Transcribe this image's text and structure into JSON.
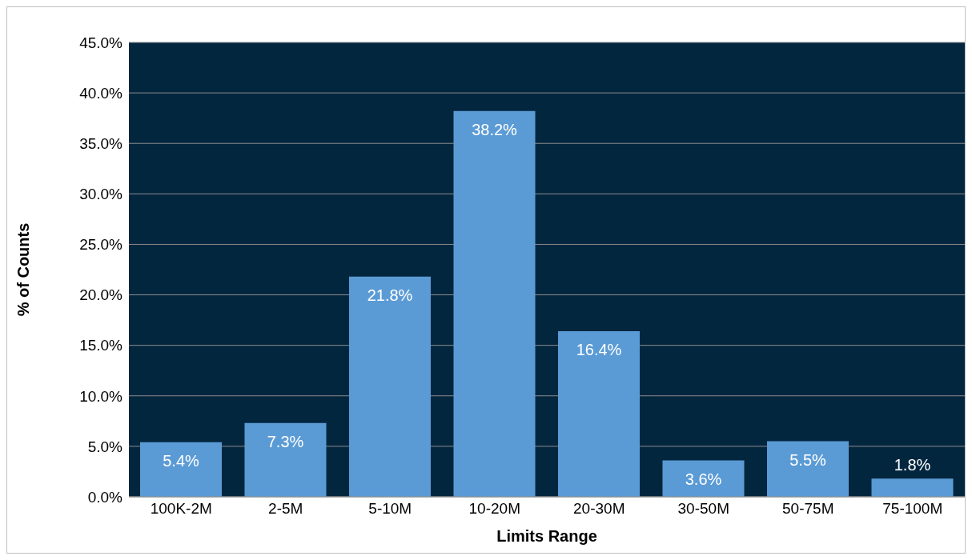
{
  "chart_data": {
    "type": "bar",
    "xlabel": "Limits Range",
    "ylabel": "% of Counts",
    "categories": [
      "100K-2M",
      "2-5M",
      "5-10M",
      "10-20M",
      "20-30M",
      "30-50M",
      "50-75M",
      "75-100M"
    ],
    "values": [
      5.4,
      7.3,
      21.8,
      38.2,
      16.4,
      3.6,
      5.5,
      1.8
    ],
    "value_labels": [
      "5.4%",
      "7.3%",
      "21.8%",
      "38.2%",
      "16.4%",
      "3.6%",
      "5.5%",
      "1.8%"
    ],
    "color": "#5b9bd5",
    "ylim": [
      0,
      45
    ],
    "yticks": [
      {
        "value": 0,
        "label": "0.0%"
      },
      {
        "value": 5,
        "label": "5.0%"
      },
      {
        "value": 10,
        "label": "10.0%"
      },
      {
        "value": 15,
        "label": "15.0%"
      },
      {
        "value": 20,
        "label": "20.0%"
      },
      {
        "value": 25,
        "label": "25.0%"
      },
      {
        "value": 30,
        "label": "30.0%"
      },
      {
        "value": 35,
        "label": "35.0%"
      },
      {
        "value": 40,
        "label": "40.0%"
      },
      {
        "value": 45,
        "label": "45.0%"
      }
    ],
    "grid": "y",
    "legend": false
  }
}
